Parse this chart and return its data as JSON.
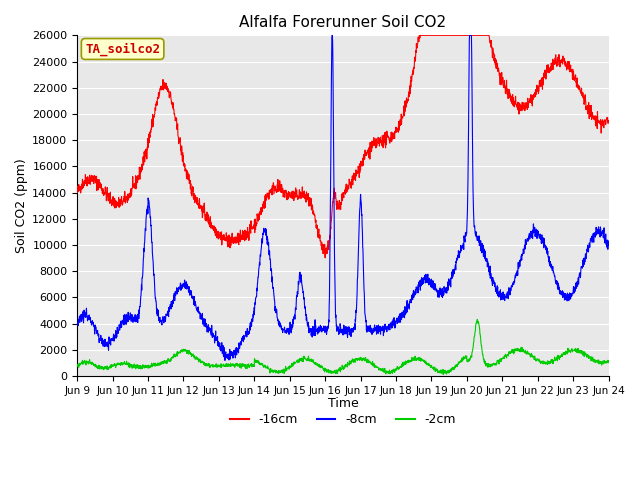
{
  "title": "Alfalfa Forerunner Soil CO2",
  "xlabel": "Time",
  "ylabel": "Soil CO2 (ppm)",
  "ylim": [
    0,
    26000
  ],
  "legend_label": "TA_soilco2",
  "line_labels": [
    "-16cm",
    "-8cm",
    "-2cm"
  ],
  "line_colors": [
    "#ff0000",
    "#0000ff",
    "#00cc00"
  ],
  "plot_bg_color": "#e8e8e8",
  "fig_bg_color": "#ffffff",
  "grid_color": "#ffffff",
  "yticks": [
    0,
    2000,
    4000,
    6000,
    8000,
    10000,
    12000,
    14000,
    16000,
    18000,
    20000,
    22000,
    24000,
    26000
  ],
  "xtick_labels": [
    "Jun 9",
    "Jun 10",
    "Jun 11",
    "Jun 12",
    "Jun 13",
    "Jun 14",
    "Jun 15",
    "Jun 16",
    "Jun 17",
    "Jun 18",
    "Jun 19",
    "Jun 20",
    "Jun 21",
    "Jun 22",
    "Jun 23",
    "Jun 24"
  ],
  "annotation_text": "TA_soilco2",
  "annotation_facecolor": "#ffffcc",
  "annotation_edgecolor": "#999900",
  "annotation_textcolor": "#cc0000"
}
